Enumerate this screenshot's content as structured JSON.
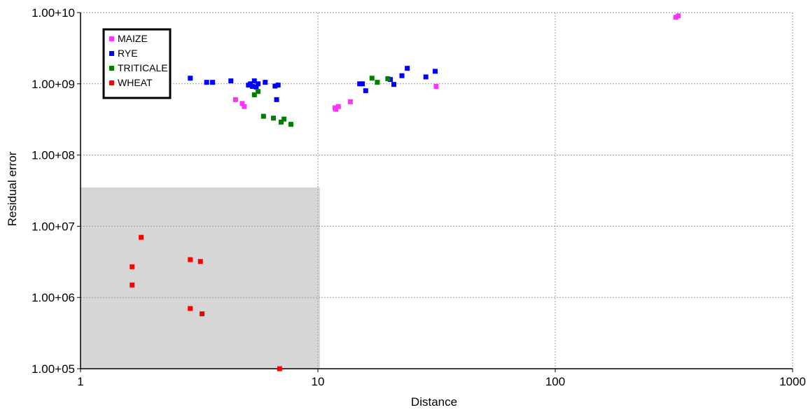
{
  "chart_data": {
    "type": "scatter",
    "title": "",
    "xlabel": "Distance",
    "ylabel": "Residual error",
    "x_scale": "log",
    "y_scale": "log",
    "xlim": [
      1,
      1000
    ],
    "ylim": [
      100000,
      10000000000
    ],
    "x_ticks": [
      {
        "value": 1,
        "label": "1"
      },
      {
        "value": 10,
        "label": "10"
      },
      {
        "value": 100,
        "label": "100"
      },
      {
        "value": 1000,
        "label": "1000"
      }
    ],
    "y_ticks": [
      {
        "value": 100000,
        "label": "1.00+05"
      },
      {
        "value": 1000000,
        "label": "1.00+06"
      },
      {
        "value": 10000000,
        "label": "1.00+07"
      },
      {
        "value": 100000000,
        "label": "1.00+08"
      },
      {
        "value": 1000000000,
        "label": "1.00+09"
      },
      {
        "value": 10000000000,
        "label": "1.00+10"
      }
    ],
    "grid": true,
    "legend_position": "top-left",
    "shaded_region": {
      "x": [
        1,
        10.2
      ],
      "y": [
        100000,
        35000000
      ],
      "color": "#d6d6d6"
    },
    "series": [
      {
        "name": "MAIZE",
        "color": "#ff33ff",
        "points": [
          {
            "x": 4.5,
            "y": 600000000
          },
          {
            "x": 4.8,
            "y": 530000000
          },
          {
            "x": 4.9,
            "y": 480000000
          },
          {
            "x": 11.8,
            "y": 460000000
          },
          {
            "x": 11.9,
            "y": 440000000
          },
          {
            "x": 12.2,
            "y": 480000000
          },
          {
            "x": 13.7,
            "y": 560000000
          },
          {
            "x": 31.5,
            "y": 920000000
          },
          {
            "x": 322,
            "y": 8600000000
          },
          {
            "x": 330,
            "y": 9000000000
          }
        ]
      },
      {
        "name": "RYE",
        "color": "#0000ff",
        "points": [
          {
            "x": 2.9,
            "y": 1200000000
          },
          {
            "x": 3.4,
            "y": 1050000000
          },
          {
            "x": 3.6,
            "y": 1050000000
          },
          {
            "x": 4.3,
            "y": 1100000000
          },
          {
            "x": 5.1,
            "y": 960000000
          },
          {
            "x": 5.2,
            "y": 1000000000
          },
          {
            "x": 5.3,
            "y": 920000000
          },
          {
            "x": 5.4,
            "y": 1100000000
          },
          {
            "x": 5.5,
            "y": 900000000
          },
          {
            "x": 5.6,
            "y": 1000000000
          },
          {
            "x": 6.0,
            "y": 1050000000
          },
          {
            "x": 6.6,
            "y": 930000000
          },
          {
            "x": 6.7,
            "y": 600000000
          },
          {
            "x": 6.8,
            "y": 960000000
          },
          {
            "x": 15.0,
            "y": 1000000000
          },
          {
            "x": 15.4,
            "y": 1000000000
          },
          {
            "x": 15.9,
            "y": 800000000
          },
          {
            "x": 20.2,
            "y": 1150000000
          },
          {
            "x": 20.9,
            "y": 980000000
          },
          {
            "x": 22.6,
            "y": 1300000000
          },
          {
            "x": 23.8,
            "y": 1650000000
          },
          {
            "x": 28.5,
            "y": 1250000000
          },
          {
            "x": 31.2,
            "y": 1500000000
          }
        ]
      },
      {
        "name": "TRITICALE",
        "color": "#008000",
        "points": [
          {
            "x": 5.4,
            "y": 700000000
          },
          {
            "x": 5.6,
            "y": 780000000
          },
          {
            "x": 5.9,
            "y": 350000000
          },
          {
            "x": 6.5,
            "y": 330000000
          },
          {
            "x": 7.0,
            "y": 290000000
          },
          {
            "x": 7.2,
            "y": 320000000
          },
          {
            "x": 7.7,
            "y": 270000000
          },
          {
            "x": 16.9,
            "y": 1200000000
          },
          {
            "x": 17.8,
            "y": 1050000000
          },
          {
            "x": 19.7,
            "y": 1180000000
          }
        ]
      },
      {
        "name": "WHEAT",
        "color": "#ff0000",
        "points": [
          {
            "x": 1.65,
            "y": 2700000
          },
          {
            "x": 1.65,
            "y": 1500000
          },
          {
            "x": 1.8,
            "y": 7000000
          },
          {
            "x": 2.9,
            "y": 3400000
          },
          {
            "x": 2.9,
            "y": 700000
          },
          {
            "x": 3.2,
            "y": 3200000
          },
          {
            "x": 3.25,
            "y": 590000
          },
          {
            "x": 6.9,
            "y": 100000
          }
        ]
      }
    ]
  }
}
